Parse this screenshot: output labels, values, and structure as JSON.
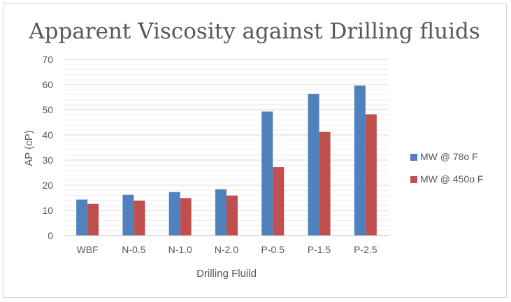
{
  "chart_data": {
    "type": "bar",
    "title": "Apparent Viscosity against Drilling fluids",
    "xlabel": "Drilling Fluild",
    "ylabel": "AP (cP)",
    "ylim": [
      0,
      70
    ],
    "yticks": [
      "0",
      "10",
      "20",
      "30",
      "40",
      "50",
      "60",
      "70"
    ],
    "categories": [
      "WBF",
      "N-0.5",
      "N-1.0",
      "N-2.0",
      "P-0.5",
      "P-1.5",
      "P-2.5"
    ],
    "series": [
      {
        "name": "MW @ 78o F",
        "color": "#4f81bd",
        "values": [
          14.3,
          16.2,
          17.3,
          18.4,
          49.3,
          56.3,
          59.6
        ]
      },
      {
        "name": "MW @ 450o F",
        "color": "#c0504d",
        "values": [
          12.6,
          13.9,
          14.9,
          15.9,
          27.2,
          41.2,
          48.2
        ]
      }
    ],
    "grid": true,
    "legend_position": "right"
  }
}
